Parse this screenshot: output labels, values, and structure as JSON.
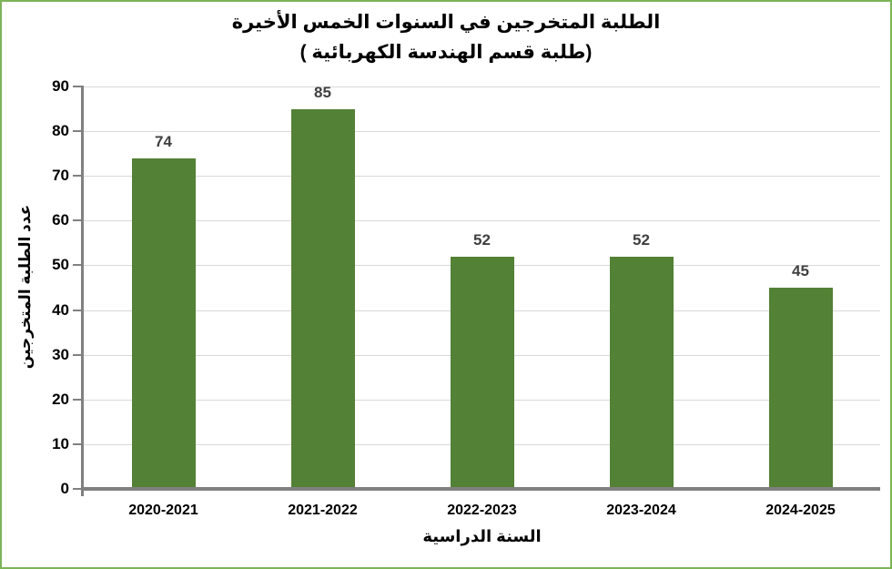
{
  "frame": {
    "border_color": "#7CB457",
    "background": "#FFFFFF"
  },
  "chart_data": {
    "type": "bar",
    "title_lines": [
      "الطلبة المتخرجين في السنوات الخمس الأخيرة",
      "(طلبة قسم الهندسة الكهربائية )"
    ],
    "categories": [
      "2020-2021",
      "2021-2022",
      "2022-2023",
      "2023-2024",
      "2024-2025"
    ],
    "values": [
      74,
      85,
      52,
      52,
      45
    ],
    "data_labels": [
      74,
      85,
      52,
      52,
      45
    ],
    "xlabel": "السنة الدراسية",
    "ylabel": "عدد الطلبة المتخرجين",
    "ylim": [
      0,
      90
    ],
    "ytick_step": 10,
    "yticks": [
      0,
      10,
      20,
      30,
      40,
      50,
      60,
      70,
      80,
      90
    ],
    "grid": true,
    "legend": "none",
    "colors": {
      "bar": "#538135",
      "axis_line": "#808080",
      "gridline": "#D9D9D9",
      "tick_label": "#000000",
      "value_label": "#404040",
      "title": "#000000"
    }
  }
}
